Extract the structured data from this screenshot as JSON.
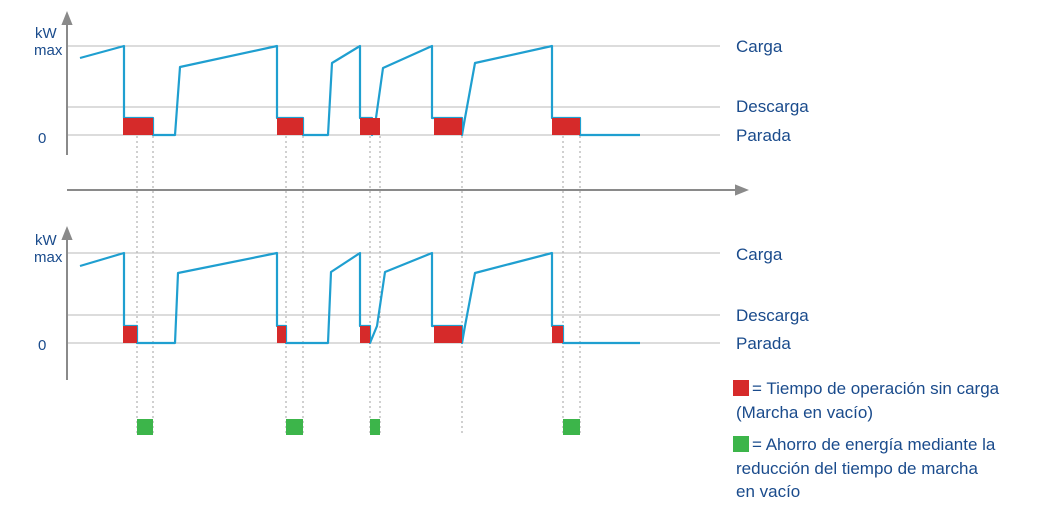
{
  "colors": {
    "signal": "#1f9fd0",
    "unload": "#d62a2a",
    "saving": "#3cb54a",
    "axis": "#8a8a8a",
    "gridline": "#b9b9b9",
    "text": "#1a4b8c"
  },
  "y_axis": {
    "unit": "kW",
    "max_label": "max",
    "zero_label": "0"
  },
  "levels": {
    "load": "Carga",
    "unload": "Descarga",
    "stop": "Parada"
  },
  "legend": {
    "idle": {
      "line1": "= Tiempo de operación sin carga",
      "line2": "(Marcha en vacío)"
    },
    "saving": {
      "line1": "= Ahorro de energía mediante la",
      "line2": "reducción del tiempo de marcha",
      "line3": "en vacío"
    }
  }
}
